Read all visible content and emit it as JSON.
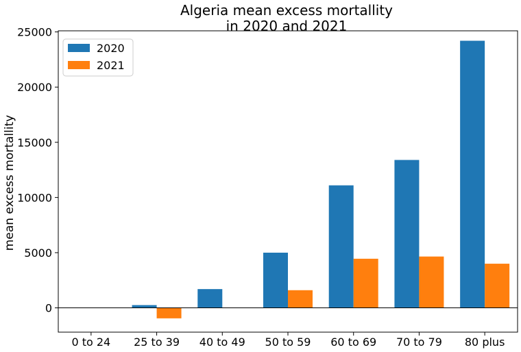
{
  "chart_data": {
    "type": "bar",
    "title_line1": "Algeria mean excess mortallity",
    "title_line2": "in 2020 and 2021",
    "ylabel": "mean excess mortallity",
    "xlabel": "",
    "categories": [
      "0 to 24",
      "25 to 39",
      "40 to 49",
      "50 to 59",
      "60 to 69",
      "70 to 79",
      "80 plus"
    ],
    "series": [
      {
        "name": "2020",
        "color": "#1f77b4",
        "values": [
          0,
          250,
          1700,
          5000,
          11100,
          13400,
          24200
        ]
      },
      {
        "name": "2021",
        "color": "#ff7f0e",
        "values": [
          0,
          -950,
          0,
          1600,
          4450,
          4650,
          4000
        ]
      }
    ],
    "ylim": [
      -2200,
      25100
    ],
    "yticks": [
      "0",
      "5000",
      "10000",
      "15000",
      "20000",
      "25000"
    ],
    "zero_line": true,
    "grid": false,
    "legend_position": "top-left"
  }
}
